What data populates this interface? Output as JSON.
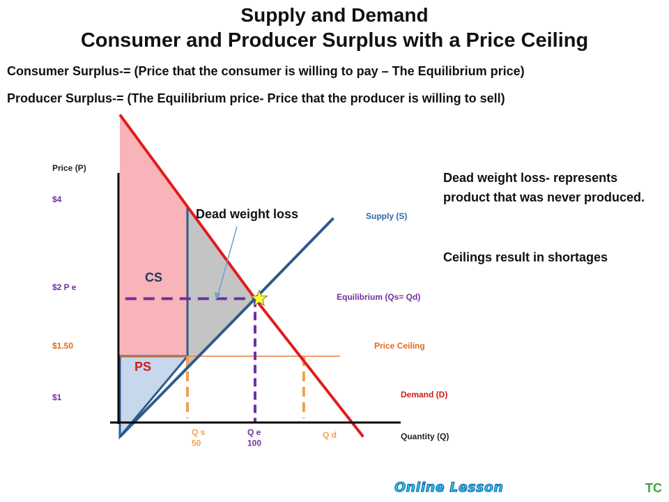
{
  "header": {
    "title": "Supply and Demand",
    "subtitle": "Consumer and Producer Surplus with a Price Ceiling"
  },
  "definitions": {
    "consumer_surplus": "Consumer Surplus-= (Price that the consumer is willing to pay – The Equilibrium price)",
    "producer_surplus": "Producer Surplus-= (The Equilibrium price- Price that the producer is willing to sell)"
  },
  "notes": {
    "deadweight": "Dead weight loss- represents product that was never produced.",
    "shortage": "Ceilings result in shortages"
  },
  "footer": {
    "brand": "Online Lesson",
    "initials": "TC"
  },
  "chart_data": {
    "type": "line",
    "title": "",
    "ylabel": "Price (P)",
    "xlabel": "Quantity (Q)",
    "y_tick_labels": [
      "$4",
      "$2 P e",
      "$1.50",
      "$1"
    ],
    "x_tick_labels": [
      "Q s\n50",
      "Q e\n100",
      "Q d"
    ],
    "y_ticks": [
      4,
      2,
      1.5,
      1
    ],
    "x_ticks": [
      50,
      100,
      150
    ],
    "series": [
      {
        "name": "Supply (S)",
        "label": "Supply (S)",
        "points": [
          [
            0,
            0.8
          ],
          [
            100,
            2
          ],
          [
            158,
            2.7
          ]
        ],
        "color": "#2e5b8c"
      },
      {
        "name": "Demand (D)",
        "label": "Demand (D)",
        "points": [
          [
            0,
            3.6
          ],
          [
            100,
            2
          ],
          [
            180,
            0.8
          ]
        ],
        "color": "#e11b1b"
      }
    ],
    "equilibrium": {
      "label": "Equilibrium (Qs= Qd)",
      "q": 100,
      "p": 2
    },
    "price_ceiling": {
      "label": "Price Ceiling",
      "p": 1.5,
      "qs": 50,
      "qd": 136
    },
    "regions": {
      "cs_label": "CS",
      "ps_label": "PS",
      "dwl_label": "Dead weight loss"
    },
    "colors": {
      "cs_fill": "#f8b4b8",
      "ps_fill": "#c7d7ec",
      "dwl_fill": "#c4c4c4",
      "equilibrium_line": "#7030a0",
      "ceiling_line": "#ed7d31",
      "ceiling_drop": "#f0a050",
      "star": "#ffff33"
    }
  }
}
